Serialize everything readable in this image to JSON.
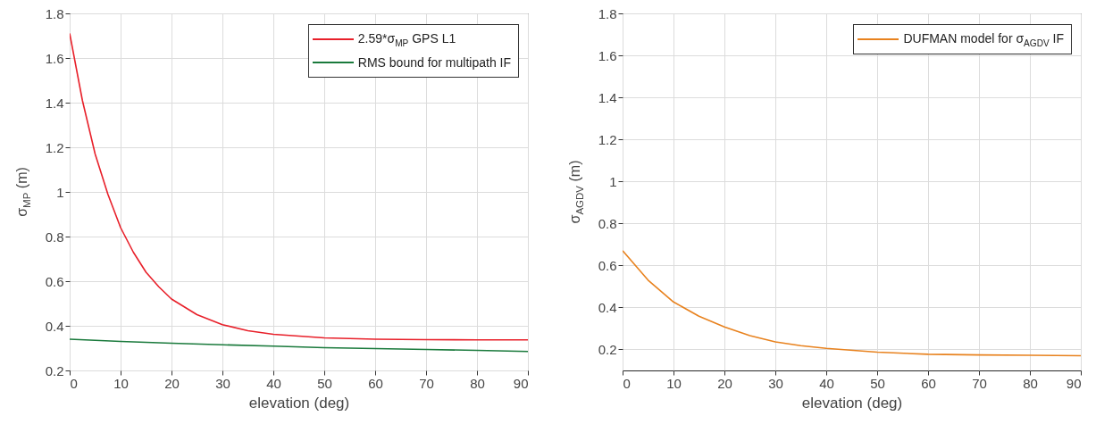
{
  "chart_data": [
    {
      "type": "line",
      "xlabel": "elevation (deg)",
      "ylabel": "σ$_{MP}$ (m)",
      "xlim": [
        0,
        90
      ],
      "ylim": [
        0.2,
        1.8
      ],
      "xticks": [
        0,
        10,
        20,
        30,
        40,
        50,
        60,
        70,
        80,
        90
      ],
      "yticks": [
        0.2,
        0.4,
        0.6,
        0.8,
        1,
        1.2,
        1.4,
        1.6,
        1.8
      ],
      "grid": true,
      "legend": "top right",
      "series": [
        {
          "name": "2.59*σ$_{MP}$ GPS L1",
          "color": "#e8202a",
          "x": [
            0,
            2.5,
            5,
            7.5,
            10,
            12.5,
            15,
            17.5,
            20,
            25,
            30,
            35,
            40,
            50,
            60,
            70,
            80,
            90
          ],
          "values": [
            1.71,
            1.41,
            1.17,
            0.99,
            0.84,
            0.73,
            0.64,
            0.575,
            0.52,
            0.45,
            0.405,
            0.378,
            0.362,
            0.346,
            0.34,
            0.338,
            0.337,
            0.337
          ]
        },
        {
          "name": "RMS bound for multipath IF",
          "color": "#1a7a3c",
          "x": [
            0,
            10,
            20,
            30,
            40,
            50,
            60,
            70,
            80,
            90
          ],
          "values": [
            0.34,
            0.33,
            0.322,
            0.315,
            0.309,
            0.302,
            0.298,
            0.294,
            0.29,
            0.285
          ]
        }
      ]
    },
    {
      "type": "line",
      "xlabel": "elevation (deg)",
      "ylabel": "σ$_{AGDV}$ (m)",
      "xlim": [
        0,
        90
      ],
      "ylim": [
        0.1,
        1.8
      ],
      "xticks": [
        0,
        10,
        20,
        30,
        40,
        50,
        60,
        70,
        80,
        90
      ],
      "yticks": [
        0.2,
        0.4,
        0.6,
        0.8,
        1,
        1.2,
        1.4,
        1.6,
        1.8
      ],
      "grid": true,
      "legend": "top right",
      "series": [
        {
          "name": "DUFMAN model for σ$_{AGDV}$ IF",
          "color": "#e8821e",
          "x": [
            0,
            5,
            10,
            15,
            20,
            25,
            30,
            35,
            40,
            50,
            60,
            70,
            80,
            90
          ],
          "values": [
            0.67,
            0.53,
            0.426,
            0.358,
            0.307,
            0.266,
            0.236,
            0.218,
            0.205,
            0.187,
            0.177,
            0.174,
            0.172,
            0.17
          ]
        }
      ]
    }
  ]
}
